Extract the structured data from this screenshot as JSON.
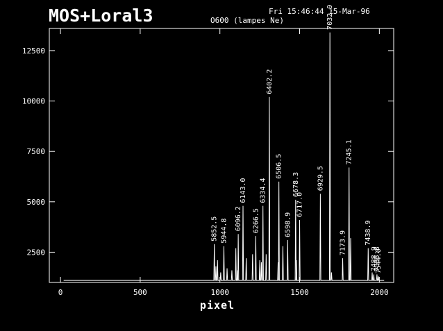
{
  "header": {
    "title": "MOS+Loral3",
    "timestamp": "Fri 15:46:44 15-Mar-96",
    "subtitle": "O600 (lampes Ne)"
  },
  "chart_data": {
    "type": "line",
    "title": "MOS+Loral3",
    "subtitle": "O600 (lampes Ne)",
    "xlabel": "pixel",
    "ylabel": "",
    "xlim": [
      -70,
      2090
    ],
    "ylim": [
      1000,
      13600
    ],
    "xticks": [
      0,
      500,
      1000,
      1500,
      2000
    ],
    "yticks": [
      2500,
      5000,
      7500,
      10000,
      12500
    ],
    "baseline": 1100,
    "grid": false,
    "minor_peaks": [
      {
        "x": 975,
        "y": 1800
      },
      {
        "x": 985,
        "y": 2100
      },
      {
        "x": 1005,
        "y": 1500
      },
      {
        "x": 1045,
        "y": 1700
      },
      {
        "x": 1075,
        "y": 1600
      },
      {
        "x": 1100,
        "y": 2700
      },
      {
        "x": 1110,
        "y": 1600
      },
      {
        "x": 1165,
        "y": 2200
      },
      {
        "x": 1205,
        "y": 2400
      },
      {
        "x": 1250,
        "y": 2100
      },
      {
        "x": 1260,
        "y": 2000
      },
      {
        "x": 1290,
        "y": 2400
      },
      {
        "x": 1365,
        "y": 2000
      },
      {
        "x": 1395,
        "y": 2800
      },
      {
        "x": 1480,
        "y": 2100
      },
      {
        "x": 1700,
        "y": 1500
      },
      {
        "x": 1820,
        "y": 3200
      },
      {
        "x": 1955,
        "y": 1500
      }
    ],
    "peaks": [
      {
        "label": "5852.5",
        "x": 965,
        "y": 2900
      },
      {
        "label": "5944.8",
        "x": 1025,
        "y": 2800
      },
      {
        "label": "6096.2",
        "x": 1115,
        "y": 3400
      },
      {
        "label": "6143.0",
        "x": 1145,
        "y": 4800
      },
      {
        "label": "6266.5",
        "x": 1225,
        "y": 3300
      },
      {
        "label": "6334.4",
        "x": 1270,
        "y": 4800
      },
      {
        "label": "6402.2",
        "x": 1310,
        "y": 10200
      },
      {
        "label": "6506.5",
        "x": 1370,
        "y": 6000
      },
      {
        "label": "6598.9",
        "x": 1425,
        "y": 3100
      },
      {
        "label": "6678.3",
        "x": 1475,
        "y": 5100
      },
      {
        "label": "6717.0",
        "x": 1500,
        "y": 4100
      },
      {
        "label": "6929.5",
        "x": 1630,
        "y": 5400
      },
      {
        "label": "7032.9",
        "x": 1690,
        "y": 13400
      },
      {
        "label": "7173.9",
        "x": 1770,
        "y": 2200
      },
      {
        "label": "7245.1",
        "x": 1810,
        "y": 6700
      },
      {
        "label": "7438.9",
        "x": 1930,
        "y": 2700
      },
      {
        "label": "7488.9",
        "x": 1965,
        "y": 1400
      },
      {
        "label": "7535.8",
        "x": 1985,
        "y": 1400
      },
      {
        "label": "7544.0",
        "x": 1995,
        "y": 1300
      }
    ]
  }
}
